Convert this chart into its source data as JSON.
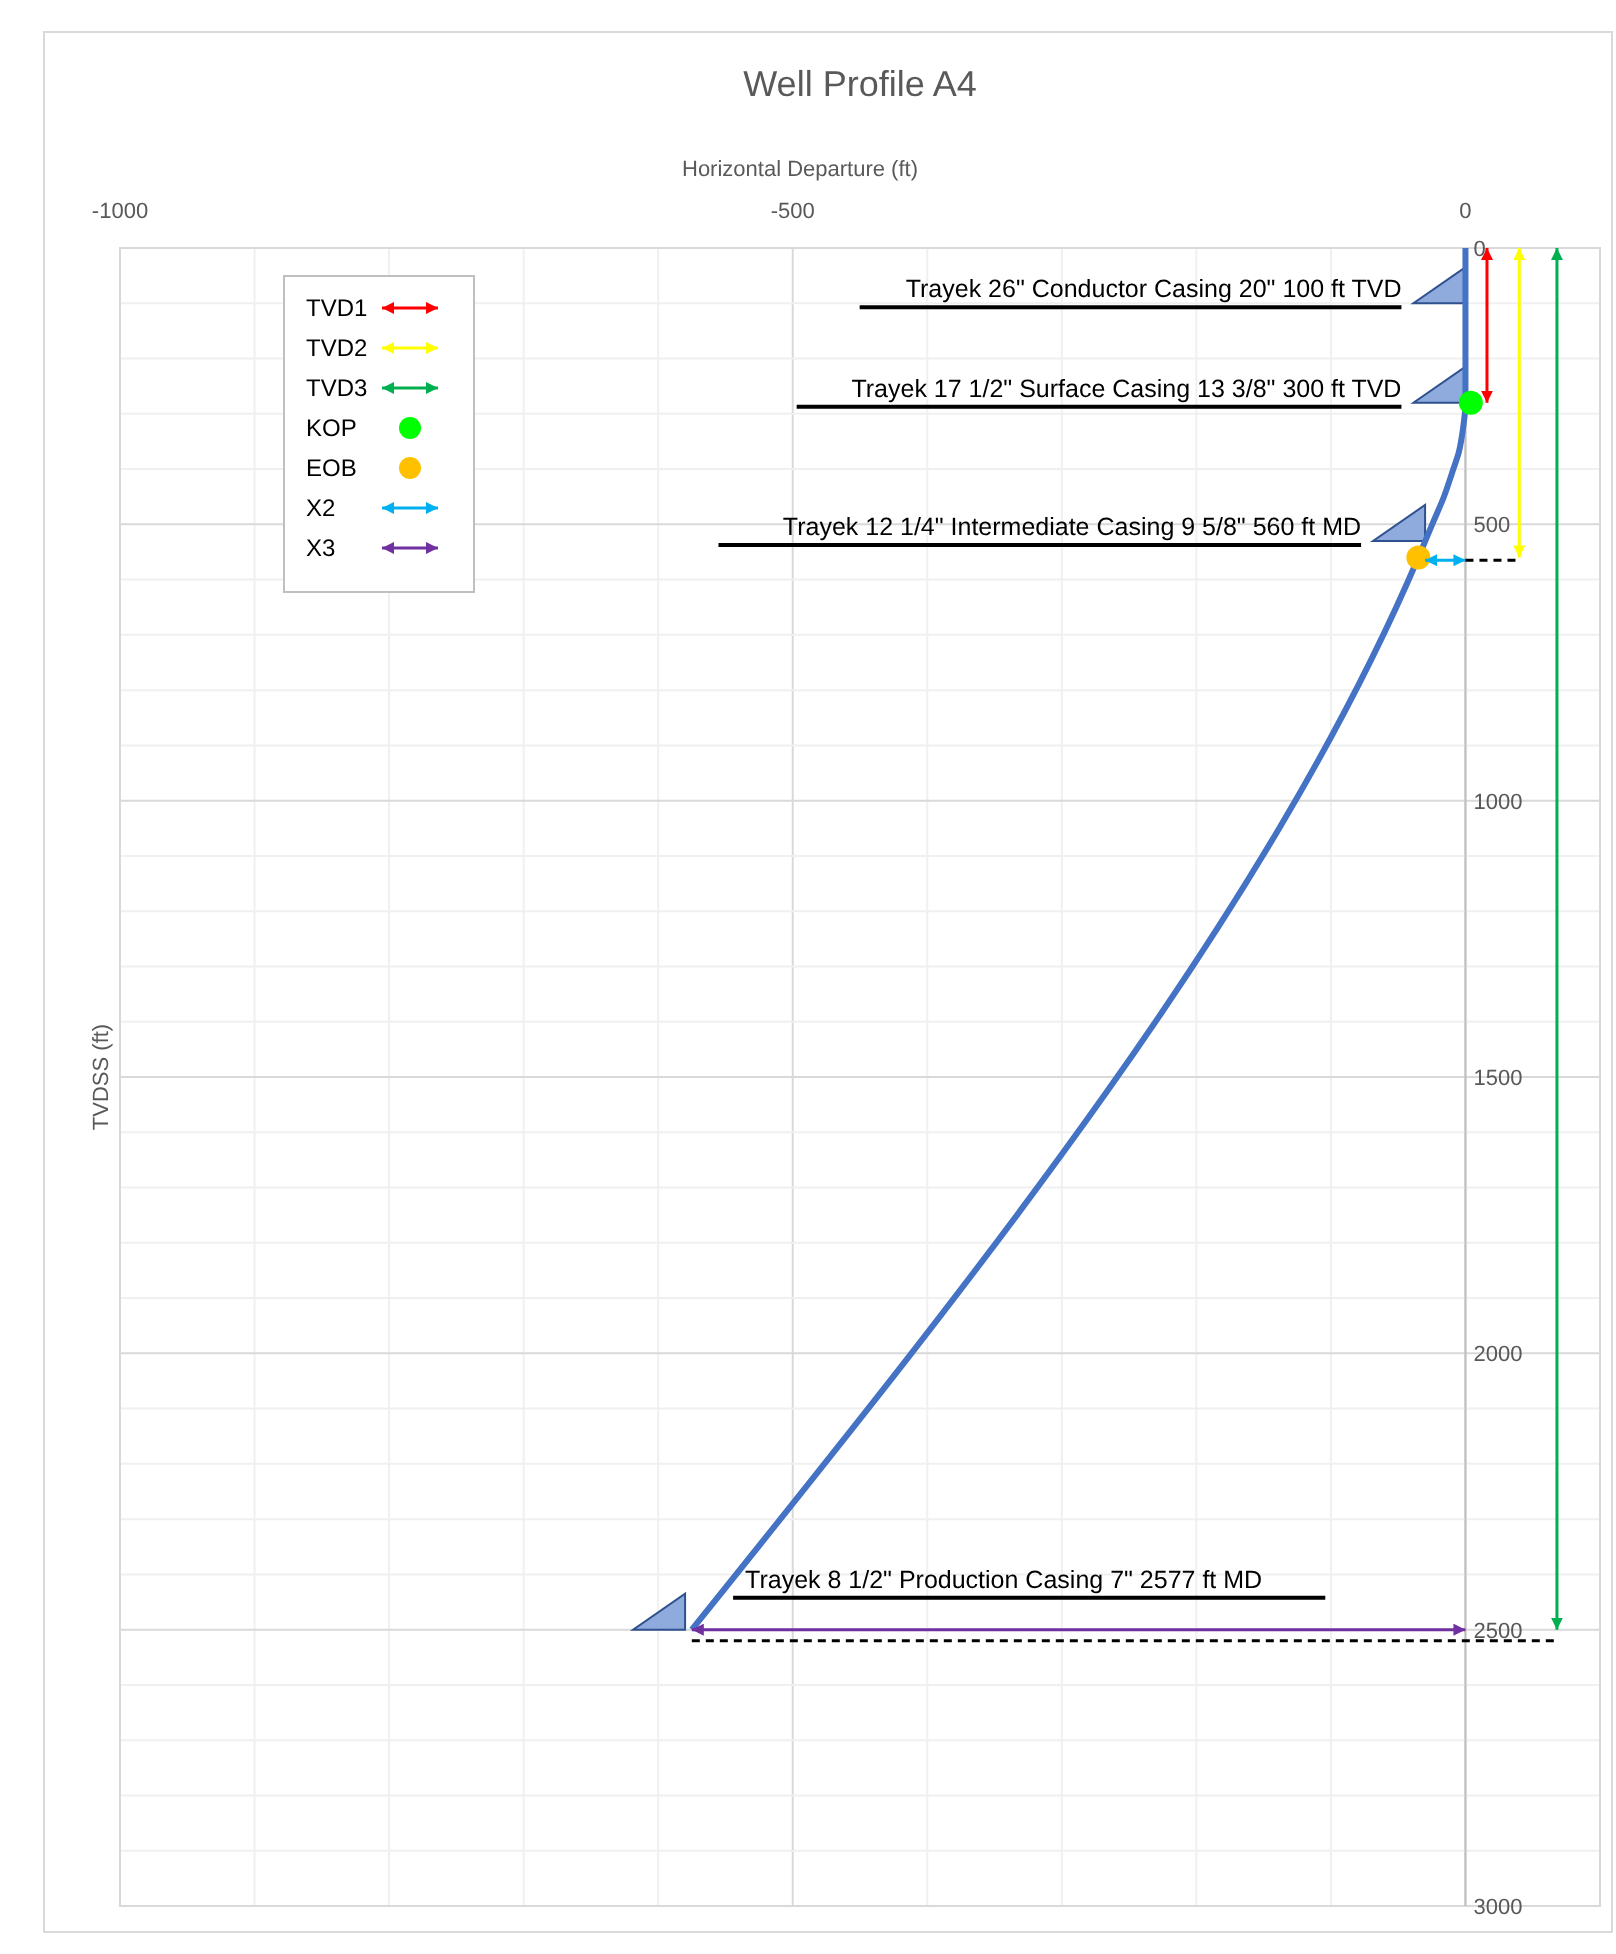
{
  "chart_data": {
    "type": "line",
    "title": "Well Profile A4",
    "xlabel": "Horizontal Departure (ft)",
    "ylabel": "TVDSS (ft)",
    "xlim": [
      -1000,
      100
    ],
    "xticks": [
      -1000,
      {
        "value": -900,
        "label": null
      },
      {
        "value": -800,
        "label": null
      },
      {
        "value": -700,
        "label": null
      },
      {
        "value": -600,
        "label": null
      },
      -500,
      {
        "value": -400,
        "label": null
      },
      {
        "value": -300,
        "label": null
      },
      {
        "value": -200,
        "label": null
      },
      {
        "value": -100,
        "label": null
      },
      0,
      {
        "value": 100,
        "label": null
      }
    ],
    "ylim": [
      3000,
      0
    ],
    "yticks": [
      0,
      {
        "value": 100,
        "label": null
      },
      {
        "value": 200,
        "label": null
      },
      {
        "value": 300,
        "label": null
      },
      {
        "value": 400,
        "label": null
      },
      500,
      {
        "value": 600,
        "label": null
      },
      {
        "value": 700,
        "label": null
      },
      {
        "value": 800,
        "label": null
      },
      {
        "value": 900,
        "label": null
      },
      1000,
      {
        "value": 1100,
        "label": null
      },
      {
        "value": 1200,
        "label": null
      },
      {
        "value": 1300,
        "label": null
      },
      {
        "value": 1400,
        "label": null
      },
      1500,
      {
        "value": 1600,
        "label": null
      },
      {
        "value": 1700,
        "label": null
      },
      {
        "value": 1800,
        "label": null
      },
      {
        "value": 1900,
        "label": null
      },
      2000,
      {
        "value": 2100,
        "label": null
      },
      {
        "value": 2200,
        "label": null
      },
      {
        "value": 2300,
        "label": null
      },
      {
        "value": 2400,
        "label": null
      },
      2500,
      {
        "value": 2600,
        "label": null
      },
      {
        "value": 2700,
        "label": null
      },
      {
        "value": 2800,
        "label": null
      },
      {
        "value": 2900,
        "label": null
      },
      3000
    ],
    "grid": true,
    "legend": "top left",
    "line_style": "solid",
    "series": [
      {
        "color": "#4472c4",
        "x": [
          0,
          0,
          -2,
          -5,
          -9,
          -16,
          -24,
          -35,
          -575
        ],
        "values": [
          0,
          280,
          330,
          370,
          400,
          450,
          496,
          560,
          2500
        ]
      },
      {
        "name": "TVD1",
        "color": "#ff0000",
        "x": [
          16,
          16
        ],
        "values": [
          0,
          280
        ]
      },
      {
        "name": "TVD2",
        "color": "#ffff00",
        "x": [
          40,
          40
        ],
        "values": [
          0,
          560
        ]
      },
      {
        "name": "TVD3",
        "color": "#00b050",
        "x": [
          68,
          68
        ],
        "values": [
          0,
          2500
        ]
      },
      {
        "type": "scatter",
        "name": "KOP",
        "marker": "circle",
        "color": "#00ff00",
        "x": [
          4
        ],
        "values": [
          280
        ]
      },
      {
        "type": "scatter",
        "name": "EOB",
        "marker": "circle",
        "color": "#ffc000",
        "x": [
          -35
        ],
        "values": [
          560
        ]
      },
      {
        "name": "X2",
        "color": "#00b0f0",
        "x": [
          -30,
          0
        ],
        "values": [
          565,
          565
        ]
      },
      {
        "name": "X3",
        "color": "#7030a0",
        "x": [
          -575,
          0
        ],
        "values": [
          2500,
          2500
        ]
      },
      {
        "line_style": "dashed",
        "color": "#000000",
        "x": [
          0,
          40
        ],
        "values": [
          565,
          565
        ]
      },
      {
        "line_style": "dashed",
        "color": "#000000",
        "x": [
          -575,
          68
        ],
        "values": [
          2520,
          2520
        ]
      }
    ],
    "annotations": [
      {
        "text": "Trayek 26\" Conductor Casing 20\" 100  ft TVD",
        "x": 0,
        "y": 100
      },
      {
        "text": "Trayek 17 1/2\" Surface Casing 13 3/8\" 300 ft TVD",
        "x": 0,
        "y": 280
      },
      {
        "text": "Trayek 12 1/4\" Intermediate Casing 9 5/8\" 560 ft MD",
        "x": -30,
        "y": 530
      },
      {
        "text": "Trayek 8 1/2\"  Production Casing 7\" 2577  ft MD",
        "x": -580,
        "y": 2500
      }
    ]
  }
}
